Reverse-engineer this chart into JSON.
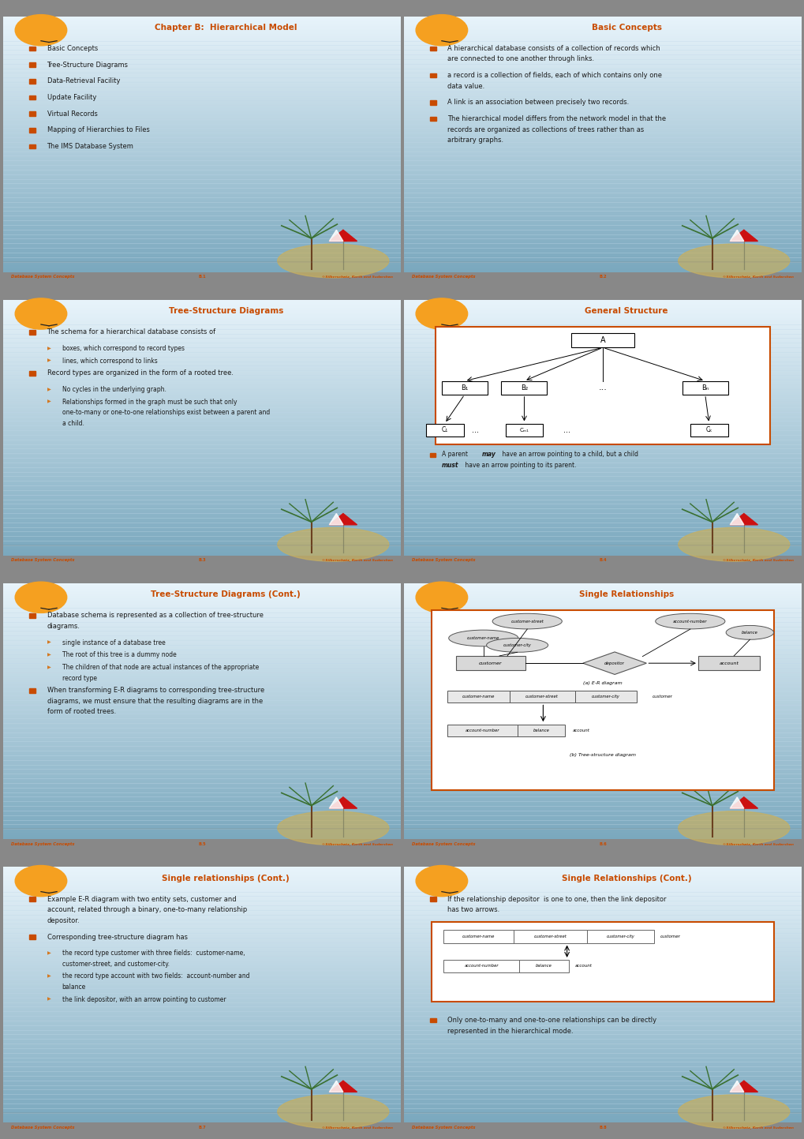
{
  "bg_top": "#e8f4fb",
  "bg_bottom": "#7aa8be",
  "title_color": "#c84b00",
  "bullet_sq_color": "#c84b00",
  "bullet_arrow_color": "#d47820",
  "text_color": "#1a1a1a",
  "footer_color": "#c84b00",
  "diagram_border": "#c84b00",
  "slides": [
    {
      "title": "Chapter B:  Hierarchical Model",
      "page": "B.1",
      "type": "bullets",
      "bullets": [
        {
          "level": 0,
          "text": "Basic Concepts"
        },
        {
          "level": 0,
          "text": "Tree-Structure Diagrams"
        },
        {
          "level": 0,
          "text": "Data-Retrieval Facility"
        },
        {
          "level": 0,
          "text": "Update Facility"
        },
        {
          "level": 0,
          "text": "Virtual Records"
        },
        {
          "level": 0,
          "text": "Mapping of Hierarchies to Files"
        },
        {
          "level": 0,
          "text": "The IMS Database System"
        }
      ]
    },
    {
      "title": "Basic Concepts",
      "page": "B.2",
      "type": "bullets",
      "bullets": [
        {
          "level": 0,
          "text": "A hierarchical database consists of a collection of records which\nare connected to one another through links."
        },
        {
          "level": 0,
          "text": "a record is a collection of fields, each of which contains only one\ndata value."
        },
        {
          "level": 0,
          "text": "A link is an association between precisely two records."
        },
        {
          "level": 0,
          "text": "The hierarchical model differs from the network model in that the\nrecords are organized as collections of trees rather than as\narbitrary graphs."
        }
      ]
    },
    {
      "title": "Tree-Structure Diagrams",
      "page": "B.3",
      "type": "bullets",
      "bullets": [
        {
          "level": 0,
          "text": "The schema for a hierarchical database consists of"
        },
        {
          "level": 1,
          "text": "boxes, which correspond to record types",
          "italic_prefix": "boxes"
        },
        {
          "level": 1,
          "text": "lines, which correspond to links",
          "italic_prefix": "lines"
        },
        {
          "level": 0,
          "text": "Record types are organized in the form of a rooted tree.",
          "italic_word": "rooted tree"
        },
        {
          "level": 1,
          "text": "No cycles in the underlying graph."
        },
        {
          "level": 1,
          "text": "Relationships formed in the graph must be such that only\none-to-many or one-to-one relationships exist between a parent and\na child."
        }
      ]
    },
    {
      "title": "General Structure",
      "page": "B.4",
      "type": "general_structure"
    },
    {
      "title": "Tree-Structure Diagrams (Cont.)",
      "page": "B.5",
      "type": "bullets",
      "bullets": [
        {
          "level": 0,
          "text": "Database schema is represented as a collection of tree-structure\ndiagrams."
        },
        {
          "level": 1,
          "text": "single instance of a database tree",
          "italic_prefix": "single"
        },
        {
          "level": 1,
          "text": "The root of this tree is a dummy node"
        },
        {
          "level": 1,
          "text": "The children of that node are actual instances of the appropriate\nrecord type"
        },
        {
          "level": 0,
          "text": "When transforming E-R diagrams to corresponding tree-structure\ndiagrams, we must ensure that the resulting diagrams are in the\nform of rooted trees."
        }
      ]
    },
    {
      "title": "Single Relationships",
      "page": "B.6",
      "type": "single_relationships"
    },
    {
      "title": "Single relationships (Cont.)",
      "page": "B.7",
      "type": "bullets",
      "bullets": [
        {
          "level": 0,
          "text": "Example E-R diagram with two entity sets, customer and\naccount, related through a binary, one-to-many relationship\ndepositor.",
          "italic_words": [
            "customer",
            "account",
            "depositor"
          ]
        },
        {
          "level": 0,
          "text": "Corresponding tree-structure diagram has"
        },
        {
          "level": 1,
          "text": "the record type customer with three fields:  customer-name,\ncustomer-street, and customer-city.",
          "italic_words": [
            "customer",
            "customer-name,",
            "customer-street,",
            "customer-city."
          ]
        },
        {
          "level": 1,
          "text": "the record type account with two fields:  account-number and\nbalance",
          "italic_words": [
            "account",
            "account-number",
            "balance"
          ]
        },
        {
          "level": 1,
          "text": "the link depositor, with an arrow pointing to customer",
          "italic_words": [
            "depositor,",
            "customer"
          ]
        }
      ]
    },
    {
      "title": "Single Relationships (Cont.)",
      "page": "B.8",
      "type": "single_relationships_cont",
      "bullet_before": "If the relationship depositor  is one to one, then the link depositor\nhas two arrows.",
      "bullet_after": "Only one-to-many and one-to-one relationships can be directly\nrepresented in the hierarchical mode."
    }
  ]
}
